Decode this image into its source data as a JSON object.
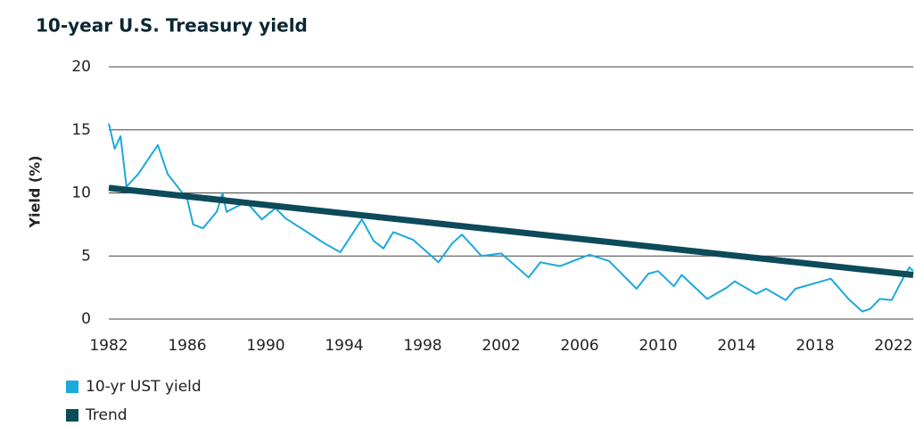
{
  "chart_data": {
    "type": "line",
    "title": "10-year U.S. Treasury yield",
    "ylabel": "Yield (%)",
    "xlim": [
      1982,
      2023
    ],
    "xticks": [
      1982,
      1986,
      1990,
      1994,
      1998,
      2002,
      2006,
      2010,
      2014,
      2018,
      2022
    ],
    "ylim": [
      0,
      20
    ],
    "yticks": [
      0,
      5,
      10,
      15,
      20
    ],
    "grid": true,
    "legend": "bottom",
    "series": [
      {
        "name": "10-yr UST yield",
        "color": "#1ba9de",
        "width": 2,
        "x": [
          1982.0,
          1982.3,
          1982.6,
          1982.9,
          1983.5,
          1984.5,
          1985.0,
          1985.5,
          1986.0,
          1986.3,
          1986.8,
          1987.5,
          1987.8,
          1988.0,
          1989.0,
          1989.8,
          1990.5,
          1991.0,
          1992.0,
          1993.0,
          1993.8,
          1994.9,
          1995.5,
          1996.0,
          1996.5,
          1997.5,
          1998.8,
          1999.5,
          2000.0,
          2001.0,
          2002.0,
          2003.4,
          2004.0,
          2005.0,
          2006.5,
          2007.5,
          2008.9,
          2009.5,
          2010.0,
          2010.8,
          2011.2,
          2012.5,
          2013.5,
          2013.9,
          2015.0,
          2015.5,
          2016.5,
          2017.0,
          2018.8,
          2019.7,
          2020.4,
          2020.8,
          2021.3,
          2021.9,
          2022.4,
          2022.8,
          2023.0
        ],
        "values": [
          15.5,
          13.5,
          14.5,
          10.5,
          11.5,
          13.8,
          11.5,
          10.5,
          9.5,
          7.5,
          7.2,
          8.5,
          10.0,
          8.5,
          9.3,
          7.9,
          8.8,
          8.0,
          7.0,
          6.0,
          5.3,
          7.9,
          6.2,
          5.6,
          6.9,
          6.3,
          4.5,
          6.0,
          6.7,
          5.0,
          5.2,
          3.3,
          4.5,
          4.2,
          5.1,
          4.6,
          2.4,
          3.6,
          3.8,
          2.6,
          3.5,
          1.6,
          2.5,
          3.0,
          2.0,
          2.4,
          1.5,
          2.4,
          3.2,
          1.6,
          0.6,
          0.8,
          1.6,
          1.5,
          3.0,
          4.1,
          3.8
        ]
      },
      {
        "name": "Trend",
        "color": "#0d4a5a",
        "width": 7,
        "x": [
          1982,
          2023
        ],
        "values": [
          10.4,
          3.5
        ]
      }
    ]
  }
}
